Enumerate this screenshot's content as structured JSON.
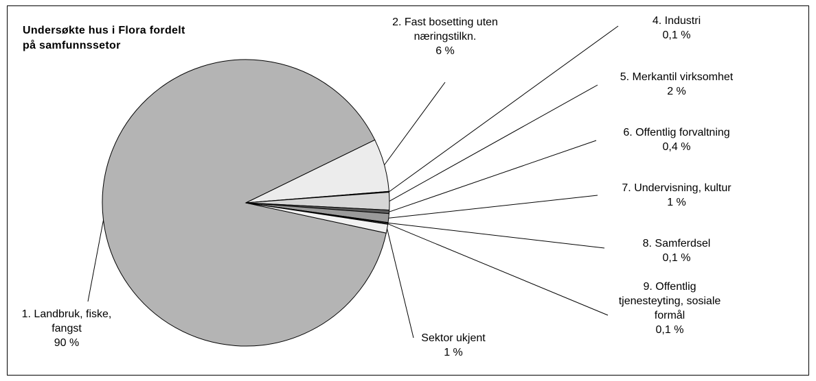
{
  "chart_data": {
    "type": "pie",
    "title": "Undersøkte hus i Flora fordelt på samfunnssetor",
    "categories": [
      "1. Landbruk, fiske, fangst",
      "2. Fast bosetting uten næringstilkn.",
      "4. Industri",
      "5. Merkantil virksomhet",
      "6. Offentlig forvaltning",
      "7. Undervisning, kultur",
      "8. Samferdsel",
      "9. Offentlig tjenesteyting, sosiale formål",
      "Sektor ukjent"
    ],
    "values": [
      90,
      6,
      0.1,
      2,
      0.4,
      1,
      0.1,
      0.1,
      1
    ],
    "value_labels": [
      "90 %",
      "6 %",
      "0,1 %",
      "2 %",
      "0,4 %",
      "1 %",
      "0,1 %",
      "0,1 %",
      "1 %"
    ],
    "colors": [
      "#b4b4b4",
      "#ececec",
      "#000000",
      "#d6d6d6",
      "#5a5a5a",
      "#9a9a9a",
      "#404040",
      "#c4c4c4",
      "#f2f2f2"
    ]
  }
}
